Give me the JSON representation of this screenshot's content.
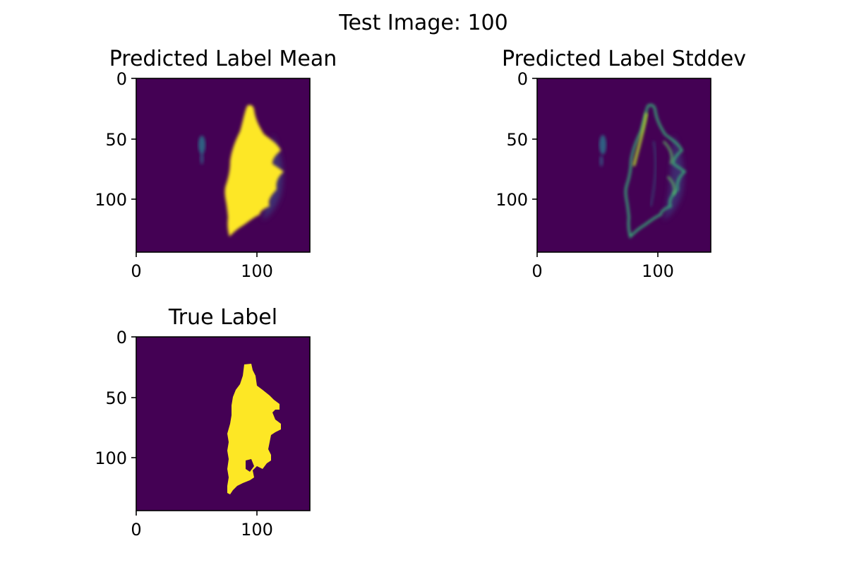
{
  "suptitle": "Test Image: 100",
  "chart_data": [
    {
      "type": "heatmap",
      "title": "Predicted Label Mean",
      "colormap": "viridis",
      "image_size": [
        144,
        144
      ],
      "xticks": [
        0,
        100
      ],
      "yticks": [
        0,
        50,
        100
      ],
      "xlim": [
        0,
        144
      ],
      "ylim": [
        144,
        0
      ],
      "content": "blob"
    },
    {
      "type": "heatmap",
      "title": "Predicted Label Stddev",
      "colormap": "viridis",
      "image_size": [
        144,
        144
      ],
      "xticks": [
        0,
        100
      ],
      "yticks": [
        0,
        50,
        100
      ],
      "xlim": [
        0,
        144
      ],
      "ylim": [
        144,
        0
      ],
      "content": "edges"
    },
    {
      "type": "heatmap",
      "title": "True Label",
      "colormap": "viridis",
      "image_size": [
        144,
        144
      ],
      "xticks": [
        0,
        100
      ],
      "yticks": [
        0,
        50,
        100
      ],
      "xlim": [
        0,
        144
      ],
      "ylim": [
        144,
        0
      ],
      "content": "mask"
    }
  ],
  "colors": {
    "background": "#440154",
    "high": "#fde725",
    "mid": "#21918c",
    "mid_light": "#5ec962"
  }
}
